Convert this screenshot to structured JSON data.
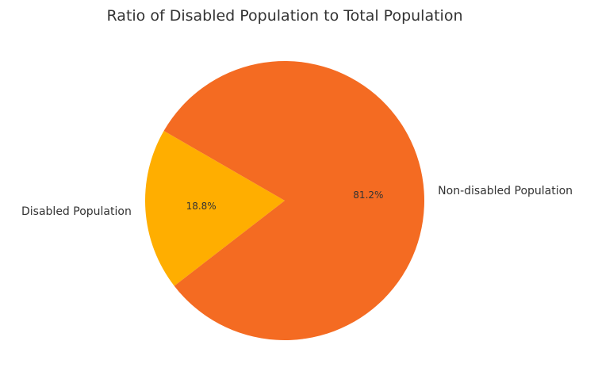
{
  "chart_data": {
    "type": "pie",
    "title": "Ratio of Disabled Population to Total Population",
    "slices": [
      {
        "label": "Disabled Population",
        "value": 18.8,
        "pct_label": "18.8%",
        "color": "#FFAE00"
      },
      {
        "label": "Non-disabled Population",
        "value": 81.2,
        "pct_label": "81.2%",
        "color": "#F46B22"
      }
    ],
    "start_angle_deg": 150,
    "direction": "counterclockwise"
  }
}
